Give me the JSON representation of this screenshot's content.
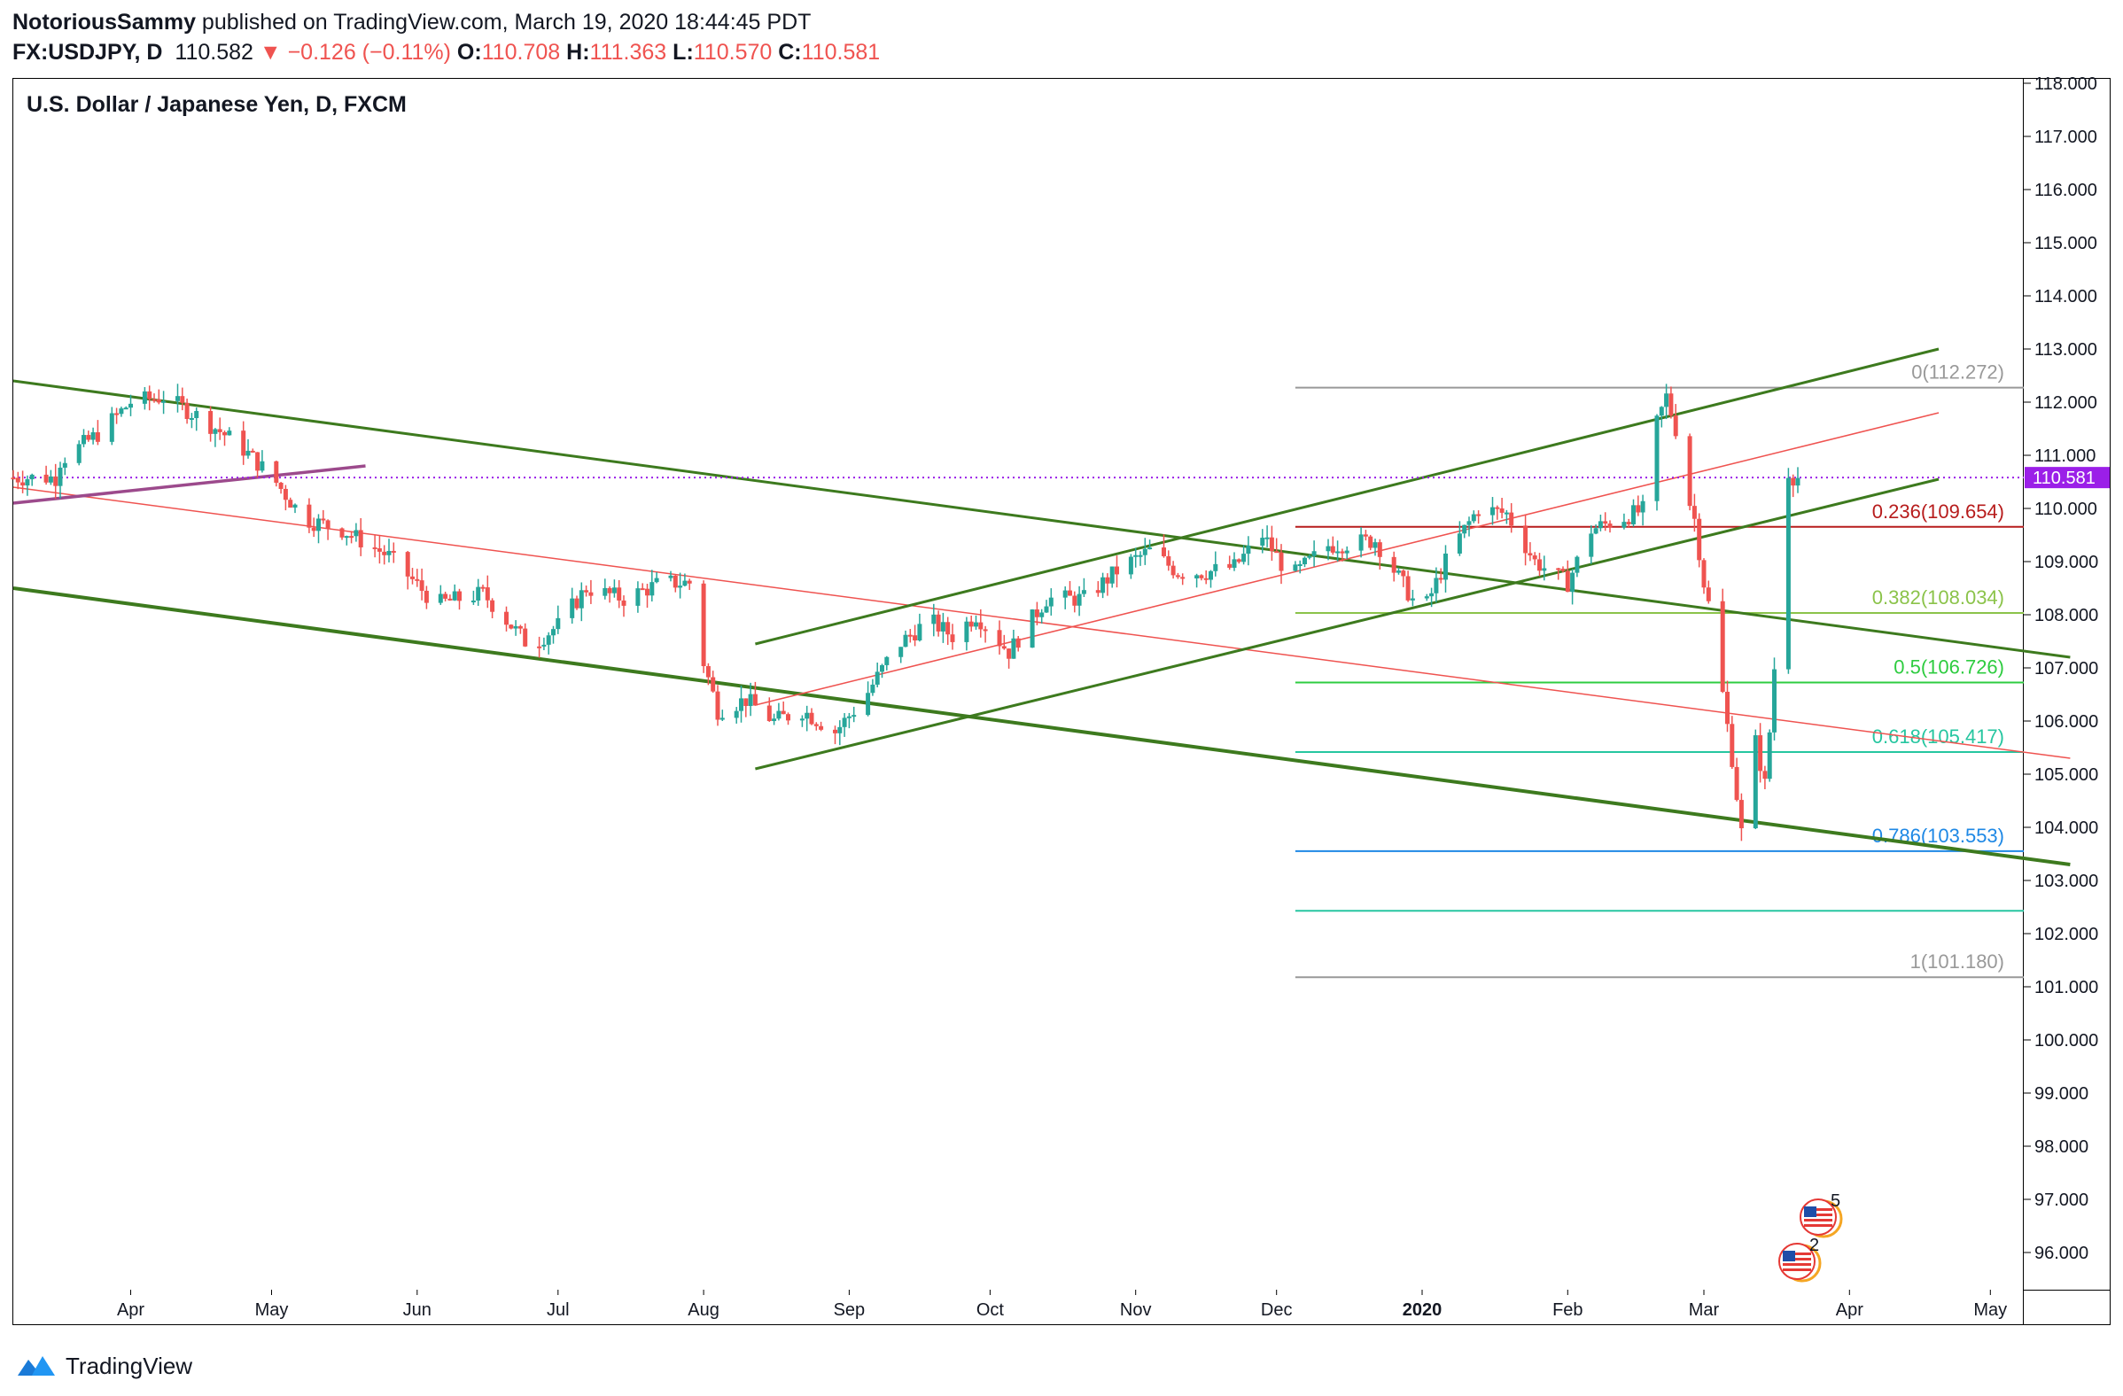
{
  "header": {
    "author": "NotoriousSammy",
    "published_text": " published on TradingView.com, March 19, 2020 18:44:45 PDT",
    "symbol": "FX:USDJPY, D",
    "last": "110.582",
    "change_arrow": "▼",
    "change": "−0.126 (−0.11%)",
    "o_label": "O:",
    "o_value": "110.708",
    "h_label": "H:",
    "h_value": "111.363",
    "l_label": "L:",
    "l_value": "110.570",
    "c_label": "C:",
    "c_value": "110.581"
  },
  "chart_title": "U.S. Dollar / Japanese Yen, D, FXCM",
  "footer": {
    "brand": "TradingView",
    "logo_icon": "tradingview-logo-icon"
  },
  "badges": [
    {
      "count": "5",
      "icon": "us-flag-event-icon"
    },
    {
      "count": "2",
      "icon": "us-flag-event-icon"
    }
  ],
  "colors": {
    "up": "#26a69a",
    "down": "#ef5350",
    "channel": "#3d7a1e",
    "last_price_bg": "#9b1fe8"
  },
  "chart_data": {
    "type": "candlestick",
    "title": "U.S. Dollar / Japanese Yen, D, FXCM",
    "ylim": [
      95.3,
      118.1
    ],
    "y_ticks": [
      "96.000",
      "97.000",
      "98.000",
      "99.000",
      "100.000",
      "101.000",
      "102.000",
      "103.000",
      "104.000",
      "105.000",
      "106.000",
      "107.000",
      "108.000",
      "109.000",
      "110.000",
      "111.000",
      "112.000",
      "113.000",
      "114.000",
      "115.000",
      "116.000",
      "117.000",
      "118.000"
    ],
    "x_labels": [
      {
        "label": "Apr",
        "t": 25
      },
      {
        "label": "May",
        "t": 55
      },
      {
        "label": "Jun",
        "t": 86
      },
      {
        "label": "Jul",
        "t": 116
      },
      {
        "label": "Aug",
        "t": 147
      },
      {
        "label": "Sep",
        "t": 178
      },
      {
        "label": "Oct",
        "t": 208
      },
      {
        "label": "Nov",
        "t": 239
      },
      {
        "label": "Dec",
        "t": 269
      },
      {
        "label": "2020",
        "t": 300
      },
      {
        "label": "Feb",
        "t": 331
      },
      {
        "label": "Mar",
        "t": 360
      },
      {
        "label": "Apr",
        "t": 391
      },
      {
        "label": "May",
        "t": 421
      }
    ],
    "close_path": [
      [
        10,
        110.9
      ],
      [
        18,
        111.4
      ],
      [
        25,
        112.0
      ],
      [
        32,
        112.1
      ],
      [
        40,
        111.7
      ],
      [
        48,
        111.2
      ],
      [
        55,
        110.6
      ],
      [
        62,
        109.8
      ],
      [
        70,
        109.6
      ],
      [
        80,
        109.1
      ],
      [
        90,
        108.2
      ],
      [
        100,
        108.4
      ],
      [
        110,
        107.4
      ],
      [
        116,
        107.8
      ],
      [
        122,
        108.5
      ],
      [
        130,
        108.3
      ],
      [
        138,
        108.6
      ],
      [
        144,
        108.6
      ],
      [
        147,
        107.1
      ],
      [
        150,
        106.2
      ],
      [
        156,
        106.4
      ],
      [
        162,
        106.0
      ],
      [
        168,
        106.2
      ],
      [
        175,
        105.8
      ],
      [
        181,
        106.4
      ],
      [
        188,
        107.4
      ],
      [
        195,
        107.9
      ],
      [
        200,
        107.6
      ],
      [
        205,
        108.0
      ],
      [
        212,
        107.3
      ],
      [
        220,
        108.3
      ],
      [
        228,
        108.3
      ],
      [
        236,
        108.9
      ],
      [
        242,
        109.2
      ],
      [
        248,
        108.8
      ],
      [
        254,
        108.8
      ],
      [
        260,
        108.9
      ],
      [
        266,
        109.5
      ],
      [
        272,
        108.7
      ],
      [
        280,
        109.3
      ],
      [
        290,
        109.4
      ],
      [
        300,
        108.0
      ],
      [
        306,
        109.2
      ],
      [
        312,
        110.0
      ],
      [
        318,
        109.9
      ],
      [
        324,
        109.0
      ],
      [
        331,
        108.6
      ],
      [
        336,
        109.6
      ],
      [
        342,
        109.8
      ],
      [
        348,
        110.0
      ],
      [
        350,
        111.6
      ],
      [
        352,
        112.1
      ],
      [
        354,
        111.5
      ],
      [
        356,
        110.4
      ],
      [
        358,
        109.8
      ],
      [
        360,
        108.6
      ],
      [
        362,
        107.8
      ],
      [
        364,
        106.5
      ],
      [
        366,
        105.3
      ],
      [
        368,
        103.9
      ],
      [
        369,
        102.4
      ],
      [
        370,
        104.2
      ],
      [
        371,
        105.6
      ],
      [
        372,
        105.2
      ],
      [
        373,
        104.8
      ],
      [
        374,
        105.8
      ],
      [
        375,
        107.0
      ],
      [
        376,
        107.6
      ],
      [
        377,
        108.4
      ],
      [
        378,
        110.7
      ],
      [
        379,
        110.6
      ],
      [
        380,
        110.58
      ]
    ],
    "last_price": "110.581",
    "fibonacci": [
      {
        "ratio": "0",
        "price": 112.272,
        "label": "0(112.272)",
        "color": "#999999"
      },
      {
        "ratio": "0.236",
        "price": 109.654,
        "label": "0.236(109.654)",
        "color": "#b71c1c"
      },
      {
        "ratio": "0.382",
        "price": 108.034,
        "label": "0.382(108.034)",
        "color": "#8bc34a"
      },
      {
        "ratio": "0.5",
        "price": 106.726,
        "label": "0.5(106.726)",
        "color": "#2ecc40"
      },
      {
        "ratio": "0.618",
        "price": 105.417,
        "label": "0.618(105.417)",
        "color": "#26c6a0"
      },
      {
        "ratio": "0.786",
        "price": 103.553,
        "label": "0.786(103.553)",
        "color": "#1e88e5"
      },
      {
        "ratio": "",
        "price": 102.43,
        "label": "",
        "color": "#26c6a0"
      },
      {
        "ratio": "1",
        "price": 101.18,
        "label": "1(101.180)",
        "color": "#999999"
      }
    ],
    "fib_start_t": 273,
    "trendlines": [
      {
        "name": "descending-upper",
        "t1": 0,
        "p1": 112.4,
        "t2": 438,
        "p2": 107.2,
        "color": "#3d7a1e",
        "w": 3
      },
      {
        "name": "descending-lower",
        "t1": 0,
        "p1": 108.5,
        "t2": 438,
        "p2": 103.3,
        "color": "#3d7a1e",
        "w": 4
      },
      {
        "name": "descending-mid",
        "t1": 0,
        "p1": 110.4,
        "t2": 438,
        "p2": 105.3,
        "color": "#ef5350",
        "w": 1.5
      },
      {
        "name": "rising-upper",
        "t1": 158,
        "p1": 107.45,
        "t2": 410,
        "p2": 113.0,
        "color": "#3d7a1e",
        "w": 3
      },
      {
        "name": "rising-lower",
        "t1": 158,
        "p1": 105.1,
        "t2": 410,
        "p2": 110.55,
        "color": "#3d7a1e",
        "w": 3
      },
      {
        "name": "rising-mid",
        "t1": 158,
        "p1": 106.3,
        "t2": 410,
        "p2": 111.8,
        "color": "#ef5350",
        "w": 1.5
      },
      {
        "name": "purple-line",
        "t1": 0,
        "p1": 110.1,
        "t2": 75,
        "p2": 110.8,
        "color": "#9c4a8c",
        "w": 3.5
      }
    ]
  }
}
